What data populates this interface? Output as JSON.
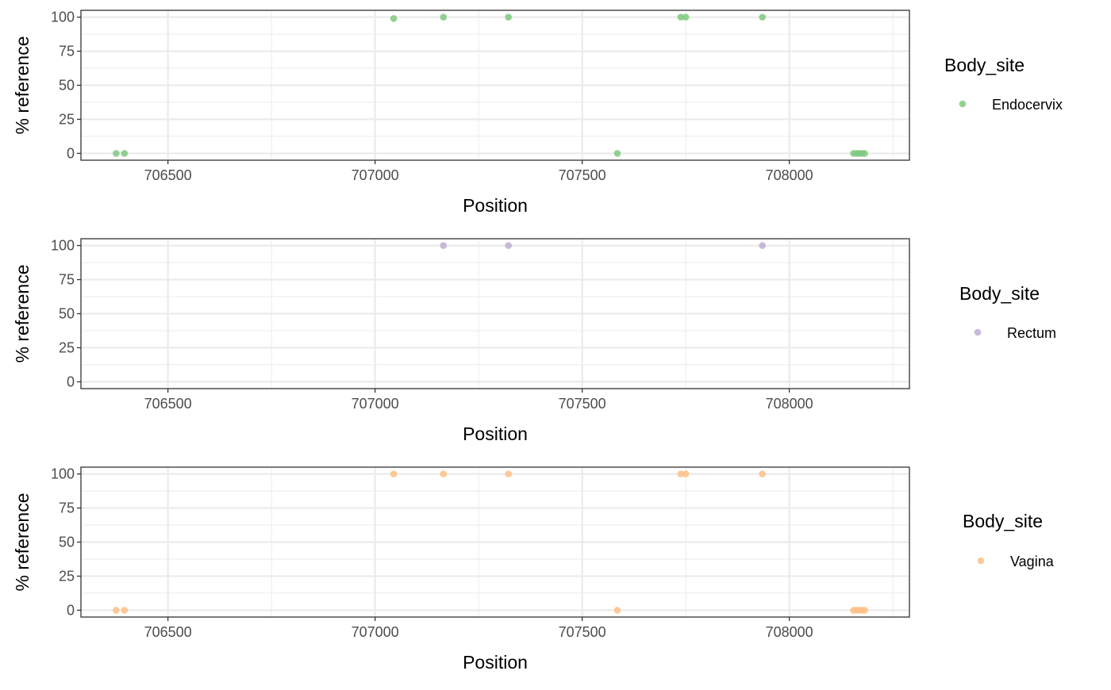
{
  "chart_data": [
    {
      "type": "scatter",
      "xlabel": "Position",
      "ylabel": "% reference",
      "xlim": [
        706290,
        708290
      ],
      "ylim": [
        -5,
        105
      ],
      "x_ticks": [
        706500,
        707000,
        707500,
        708000
      ],
      "y_ticks": [
        0,
        25,
        50,
        75,
        100
      ],
      "x_tick_labels": [
        "706500",
        "707000",
        "707500",
        "708000"
      ],
      "y_tick_labels": [
        "0",
        "25",
        "50",
        "75",
        "100"
      ],
      "grid": true,
      "legend": {
        "title": "Body_site",
        "placement": "right"
      },
      "series": [
        {
          "name": "Endocervix",
          "color": "#7fc97f",
          "points": [
            {
              "x": 706375,
              "y": 0
            },
            {
              "x": 706395,
              "y": 0
            },
            {
              "x": 707045,
              "y": 99
            },
            {
              "x": 707165,
              "y": 100
            },
            {
              "x": 707322,
              "y": 100
            },
            {
              "x": 707585,
              "y": 0
            },
            {
              "x": 707738,
              "y": 100
            },
            {
              "x": 707750,
              "y": 100
            },
            {
              "x": 707935,
              "y": 100
            },
            {
              "x": 708155,
              "y": 0
            },
            {
              "x": 708162,
              "y": 0
            },
            {
              "x": 708168,
              "y": 0
            },
            {
              "x": 708175,
              "y": 0
            },
            {
              "x": 708182,
              "y": 0
            }
          ]
        }
      ]
    },
    {
      "type": "scatter",
      "xlabel": "Position",
      "ylabel": "% reference",
      "xlim": [
        706290,
        708290
      ],
      "ylim": [
        -5,
        105
      ],
      "x_ticks": [
        706500,
        707000,
        707500,
        708000
      ],
      "y_ticks": [
        0,
        25,
        50,
        75,
        100
      ],
      "x_tick_labels": [
        "706500",
        "707000",
        "707500",
        "708000"
      ],
      "y_tick_labels": [
        "0",
        "25",
        "50",
        "75",
        "100"
      ],
      "grid": true,
      "legend": {
        "title": "Body_site",
        "placement": "right"
      },
      "series": [
        {
          "name": "Rectum",
          "color": "#beaed4",
          "points": [
            {
              "x": 707165,
              "y": 100
            },
            {
              "x": 707322,
              "y": 100
            },
            {
              "x": 707935,
              "y": 100
            }
          ]
        }
      ]
    },
    {
      "type": "scatter",
      "xlabel": "Position",
      "ylabel": "% reference",
      "xlim": [
        706290,
        708290
      ],
      "ylim": [
        -5,
        105
      ],
      "x_ticks": [
        706500,
        707000,
        707500,
        708000
      ],
      "y_ticks": [
        0,
        25,
        50,
        75,
        100
      ],
      "x_tick_labels": [
        "706500",
        "707000",
        "707500",
        "708000"
      ],
      "y_tick_labels": [
        "0",
        "25",
        "50",
        "75",
        "100"
      ],
      "grid": true,
      "legend": {
        "title": "Body_site",
        "placement": "right"
      },
      "series": [
        {
          "name": "Vagina",
          "color": "#fdc086",
          "points": [
            {
              "x": 706375,
              "y": 0
            },
            {
              "x": 706395,
              "y": 0
            },
            {
              "x": 707045,
              "y": 100
            },
            {
              "x": 707165,
              "y": 100
            },
            {
              "x": 707322,
              "y": 100
            },
            {
              "x": 707585,
              "y": 0
            },
            {
              "x": 707738,
              "y": 100
            },
            {
              "x": 707750,
              "y": 100
            },
            {
              "x": 707935,
              "y": 100
            },
            {
              "x": 708155,
              "y": 0
            },
            {
              "x": 708162,
              "y": 0
            },
            {
              "x": 708168,
              "y": 0
            },
            {
              "x": 708175,
              "y": 0
            },
            {
              "x": 708182,
              "y": 0
            }
          ]
        }
      ]
    }
  ]
}
